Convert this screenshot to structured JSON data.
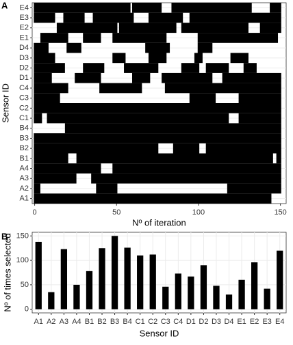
{
  "chart_data": [
    {
      "type": "interval",
      "panel_label": "A",
      "xlabel": "Nº of iteration",
      "ylabel": "Sensor ID",
      "color": "#000000",
      "grid": true,
      "categories": [
        "A1",
        "A2",
        "A3",
        "A4",
        "B1",
        "B2",
        "B3",
        "B4",
        "C1",
        "C2",
        "C3",
        "C4",
        "D1",
        "D2",
        "D3",
        "D4",
        "E1",
        "E2",
        "E3",
        "E4"
      ],
      "intervals": [
        [
          [
            0,
            144
          ]
        ],
        [
          [
            0,
            3
          ],
          [
            38,
            50
          ],
          [
            118,
            150
          ]
        ],
        [
          [
            0,
            25
          ],
          [
            35,
            150
          ]
        ],
        [
          [
            0,
            40
          ],
          [
            48,
            150
          ]
        ],
        [
          [
            0,
            20
          ],
          [
            26,
            145
          ],
          [
            148,
            150
          ]
        ],
        [
          [
            0,
            75
          ],
          [
            85,
            100
          ],
          [
            105,
            150
          ]
        ],
        [
          [
            0,
            150
          ]
        ],
        [
          [
            19,
            150
          ]
        ],
        [
          [
            0,
            4
          ],
          [
            8,
            118
          ],
          [
            125,
            150
          ]
        ],
        [
          [
            0,
            150
          ]
        ],
        [
          [
            0,
            15
          ],
          [
            95,
            110
          ],
          [
            125,
            150
          ]
        ],
        [
          [
            0,
            20
          ],
          [
            40,
            65
          ],
          [
            80,
            150
          ]
        ],
        [
          [
            0,
            10
          ],
          [
            25,
            40
          ],
          [
            60,
            70
          ],
          [
            78,
            108
          ],
          [
            115,
            150
          ]
        ],
        [
          [
            0,
            18
          ],
          [
            30,
            42
          ],
          [
            55,
            75
          ],
          [
            90,
            100
          ],
          [
            105,
            118
          ],
          [
            128,
            135
          ]
        ],
        [
          [
            0,
            12
          ],
          [
            48,
            55
          ],
          [
            70,
            80
          ],
          [
            98,
            102
          ],
          [
            120,
            130
          ]
        ],
        [
          [
            0,
            8
          ],
          [
            20,
            28
          ],
          [
            68,
            82
          ],
          [
            100,
            108
          ]
        ],
        [
          [
            4,
            20
          ],
          [
            30,
            40
          ],
          [
            48,
            80
          ],
          [
            100,
            148
          ]
        ],
        [
          [
            14,
            50
          ],
          [
            52,
            86
          ],
          [
            90,
            130
          ],
          [
            138,
            150
          ]
        ],
        [
          [
            0,
            12
          ],
          [
            18,
            30
          ],
          [
            36,
            60
          ],
          [
            70,
            90
          ],
          [
            95,
            150
          ]
        ],
        [
          [
            0,
            58
          ],
          [
            60,
            77
          ],
          [
            84,
            132
          ],
          [
            144,
            150
          ]
        ]
      ],
      "xlim": [
        -1.5,
        153.5
      ],
      "xticks": [
        0,
        50,
        100,
        150
      ]
    },
    {
      "type": "bar",
      "panel_label": "B",
      "xlabel": "Sensor ID",
      "ylabel": "Nº of times selected",
      "color": "#000000",
      "grid": true,
      "categories": [
        "A1",
        "A2",
        "A3",
        "A4",
        "B1",
        "B2",
        "B3",
        "B4",
        "C1",
        "C2",
        "C3",
        "C4",
        "D1",
        "D2",
        "D3",
        "D4",
        "E1",
        "E2",
        "E3",
        "E4"
      ],
      "values": [
        138,
        35,
        123,
        50,
        78,
        125,
        150,
        126,
        110,
        112,
        46,
        73,
        67,
        90,
        48,
        30,
        60,
        96,
        42,
        120
      ],
      "ylim": [
        -7.5,
        157.5
      ],
      "yticks": [
        0,
        50,
        100,
        150
      ]
    }
  ]
}
